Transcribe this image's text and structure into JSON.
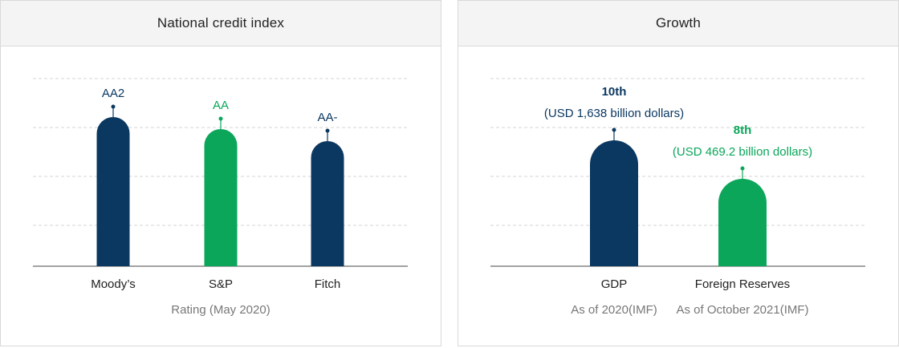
{
  "colors": {
    "navy": "#0b3861",
    "green": "#0ba65a",
    "grid": "#d5d5d5",
    "axis": "#444444",
    "note": "#777777"
  },
  "chart_data": [
    {
      "type": "bar",
      "title": "National credit index",
      "xlabel": "Rating (May 2020)",
      "categories": [
        "Moody’s",
        "S&P",
        "Fitch"
      ],
      "values": [
        3,
        2,
        1
      ],
      "labels": [
        "AA2",
        "AA",
        "AA-"
      ],
      "colors": [
        "#0b3861",
        "#0ba65a",
        "#0b3861"
      ],
      "grid": true
    },
    {
      "type": "bar",
      "title": "Growth",
      "categories": [
        "GDP",
        "Foreign Reserves"
      ],
      "values": [
        10,
        8
      ],
      "labels": [
        "10th",
        "8th"
      ],
      "sublabels": [
        "(USD 1,638 billion dollars)",
        "(USD 469.2 billion dollars)"
      ],
      "notes": [
        "As of 2020(IMF)",
        "As of October 2021(IMF)"
      ],
      "colors": [
        "#0b3861",
        "#0ba65a"
      ],
      "grid": true
    }
  ]
}
